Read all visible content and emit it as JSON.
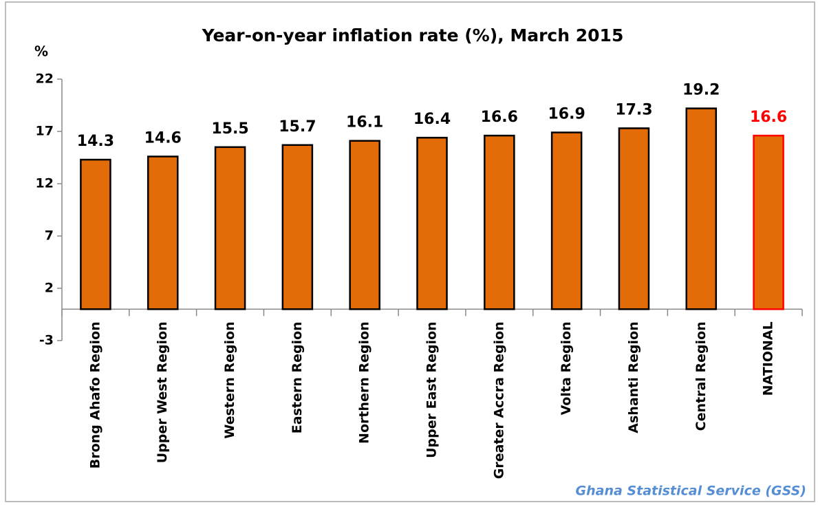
{
  "chart_data": {
    "type": "bar",
    "title": "Year-on-year inflation rate (%), March 2015",
    "y_label": "%",
    "source": "Ghana Statistical Service (GSS)",
    "categories": [
      "Brong Ahafo Region",
      "Upper West Region",
      "Western Region",
      "Eastern Region",
      "Northern Region",
      "Upper East Region",
      "Greater Accra Region",
      "Volta Region",
      "Ashanti Region",
      "Central Region",
      "NATIONAL"
    ],
    "values": [
      14.3,
      14.6,
      15.5,
      15.7,
      16.1,
      16.4,
      16.6,
      16.9,
      17.3,
      19.2,
      16.6
    ],
    "bar_colors": [
      "#e36c09",
      "#e36c09",
      "#e36c09",
      "#e36c09",
      "#e36c09",
      "#e36c09",
      "#e36c09",
      "#e36c09",
      "#e36c09",
      "#e36c09",
      "#e36c09"
    ],
    "edge_colors": [
      "#000000",
      "#000000",
      "#000000",
      "#000000",
      "#000000",
      "#000000",
      "#000000",
      "#000000",
      "#000000",
      "#000000",
      "#ff0000"
    ],
    "label_colors": [
      "#000000",
      "#000000",
      "#000000",
      "#000000",
      "#000000",
      "#000000",
      "#000000",
      "#000000",
      "#000000",
      "#000000",
      "#ff0000"
    ],
    "ylim": [
      -3,
      22
    ],
    "yticks": [
      -3,
      2,
      7,
      12,
      17,
      22
    ],
    "grid": false
  }
}
